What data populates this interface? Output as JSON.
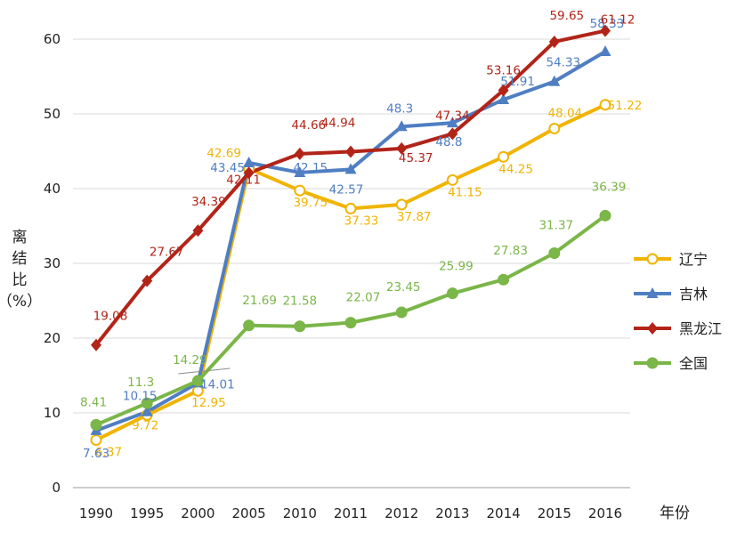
{
  "chart_data": {
    "type": "line",
    "categories": [
      "1990",
      "1995",
      "2000",
      "2005",
      "2010",
      "2011",
      "2012",
      "2013",
      "2014",
      "2015",
      "2016"
    ],
    "xlabel": "年份",
    "ylabel_chars": [
      "离",
      "结",
      "比",
      "（%）"
    ],
    "ylim": [
      0,
      60
    ],
    "yticks": [
      0,
      10,
      20,
      30,
      40,
      50,
      60
    ],
    "grid": true,
    "legend_position": "right",
    "series": [
      {
        "name": "辽宁",
        "color": "#F0B400",
        "marker": "circle-open",
        "values": [
          6.37,
          9.72,
          12.95,
          42.69,
          39.75,
          37.33,
          37.87,
          41.15,
          44.25,
          48.04,
          51.22
        ]
      },
      {
        "name": "吉林",
        "color": "#4F7EC2",
        "marker": "triangle",
        "values": [
          7.63,
          10.15,
          14.01,
          43.45,
          42.15,
          42.57,
          48.3,
          48.8,
          51.91,
          54.33,
          58.33
        ]
      },
      {
        "name": "黑龙江",
        "color": "#B22418",
        "marker": "diamond",
        "values": [
          19.08,
          27.67,
          34.39,
          42.11,
          44.66,
          44.94,
          45.37,
          47.34,
          53.16,
          59.65,
          61.12
        ]
      },
      {
        "name": "全国",
        "color": "#7AB648",
        "marker": "circle",
        "values": [
          8.41,
          11.3,
          14.29,
          21.69,
          21.58,
          22.07,
          23.45,
          25.99,
          27.83,
          31.37,
          36.39
        ]
      }
    ]
  }
}
